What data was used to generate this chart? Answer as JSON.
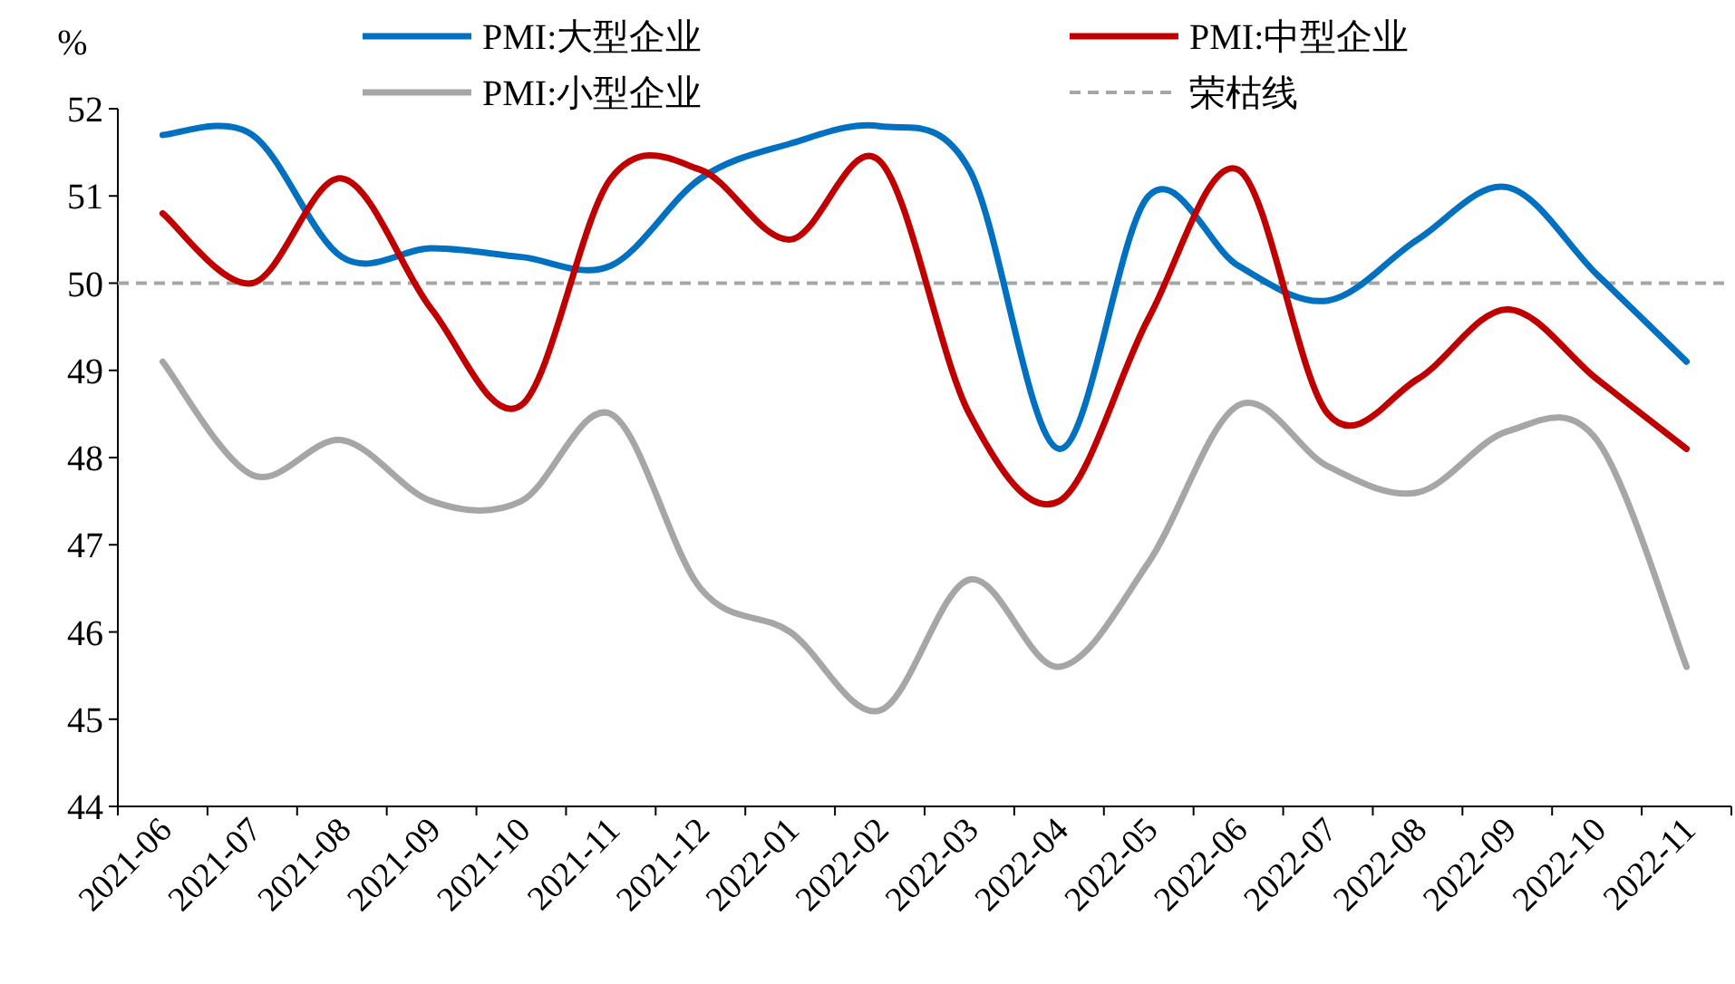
{
  "chart_data": {
    "type": "line",
    "ylabel": "%",
    "categories": [
      "2021-06",
      "2021-07",
      "2021-08",
      "2021-09",
      "2021-10",
      "2021-11",
      "2021-12",
      "2022-01",
      "2022-02",
      "2022-03",
      "2022-04",
      "2022-05",
      "2022-06",
      "2022-07",
      "2022-08",
      "2022-09",
      "2022-10",
      "2022-11"
    ],
    "series": [
      {
        "name": "PMI:大型企业",
        "color": "#0070c0",
        "values": [
          51.7,
          51.7,
          50.3,
          50.4,
          50.3,
          50.2,
          51.2,
          51.6,
          51.8,
          51.3,
          48.1,
          51.0,
          50.2,
          49.8,
          50.5,
          51.1,
          50.1,
          49.1
        ]
      },
      {
        "name": "PMI:中型企业",
        "color": "#c00000",
        "values": [
          50.8,
          50.0,
          51.2,
          49.7,
          48.6,
          51.2,
          51.3,
          50.5,
          51.4,
          48.5,
          47.5,
          49.6,
          51.3,
          48.5,
          48.9,
          49.7,
          48.9,
          48.1
        ]
      },
      {
        "name": "PMI:小型企业",
        "color": "#a6a6a6",
        "values": [
          49.1,
          47.8,
          48.2,
          47.5,
          47.5,
          48.5,
          46.5,
          46.0,
          45.1,
          46.6,
          45.6,
          46.8,
          48.6,
          47.9,
          47.6,
          48.3,
          48.2,
          45.6
        ]
      }
    ],
    "ref_lines": [
      {
        "axis": "y",
        "value": 50,
        "label": "荣枯线",
        "color": "#a6a6a6",
        "line_style": "dashed"
      }
    ],
    "ylim": [
      44,
      52
    ],
    "yticks": [
      44,
      45,
      46,
      47,
      48,
      49,
      50,
      51,
      52
    ],
    "legend": "top"
  }
}
